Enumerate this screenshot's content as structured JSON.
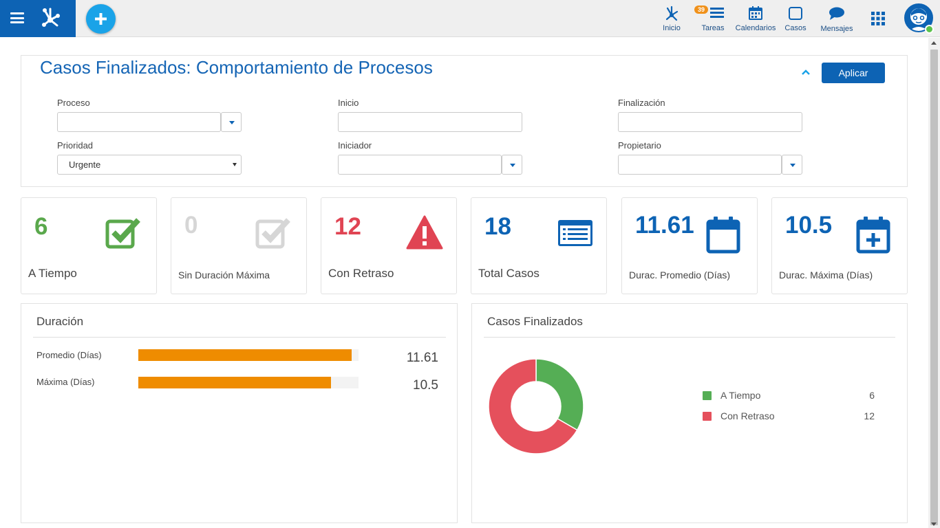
{
  "nav": {
    "inicio": "Inicio",
    "tareas": "Tareas",
    "tareas_badge": "39",
    "calendarios": "Calendarios",
    "casos": "Casos",
    "mensajes": "Mensajes"
  },
  "report": {
    "title": "Casos Finalizados: Comportamiento de Procesos",
    "apply_label": "Aplicar"
  },
  "filters": {
    "proceso": {
      "label": "Proceso",
      "value": ""
    },
    "inicio": {
      "label": "Inicio",
      "value": ""
    },
    "finalizacion": {
      "label": "Finalización",
      "value": ""
    },
    "prioridad": {
      "label": "Prioridad",
      "value": "Urgente"
    },
    "iniciador": {
      "label": "Iniciador",
      "value": ""
    },
    "propietario": {
      "label": "Propietario",
      "value": ""
    }
  },
  "kpis": {
    "a_tiempo": {
      "value": "6",
      "label": "A Tiempo",
      "color": "#5aa84c"
    },
    "sin_duracion": {
      "value": "0",
      "label": "Sin Duración Máxima",
      "color": "#d6d6d6"
    },
    "con_retraso": {
      "value": "12",
      "label": "Con Retraso",
      "color": "#e04453"
    },
    "total": {
      "value": "18",
      "label": "Total Casos",
      "color": "#0d63b4"
    },
    "promedio": {
      "value": "11.61",
      "label": "Durac. Promedio (Días)",
      "color": "#0d63b4"
    },
    "maxima": {
      "value": "10.5",
      "label": "Durac. Máxima (Días)",
      "color": "#0d63b4"
    }
  },
  "duration_panel": {
    "title": "Duración",
    "max_scale": 12.0
  },
  "cases_panel": {
    "title": "Casos Finalizados"
  },
  "chart_data": [
    {
      "type": "bar",
      "orientation": "horizontal",
      "title": "Duración",
      "categories": [
        "Promedio (Días)",
        "Máxima (Días)"
      ],
      "values": [
        11.61,
        10.5
      ],
      "value_labels": [
        "11.61",
        "10.5"
      ],
      "color": "#ef8c00"
    },
    {
      "type": "pie",
      "style": "donut",
      "title": "Casos Finalizados",
      "categories": [
        "A Tiempo",
        "Con Retraso"
      ],
      "values": [
        6,
        12
      ],
      "value_labels": [
        "6",
        "12"
      ],
      "colors": [
        "#55ae55",
        "#e5505c"
      ],
      "legend_position": "right"
    }
  ]
}
